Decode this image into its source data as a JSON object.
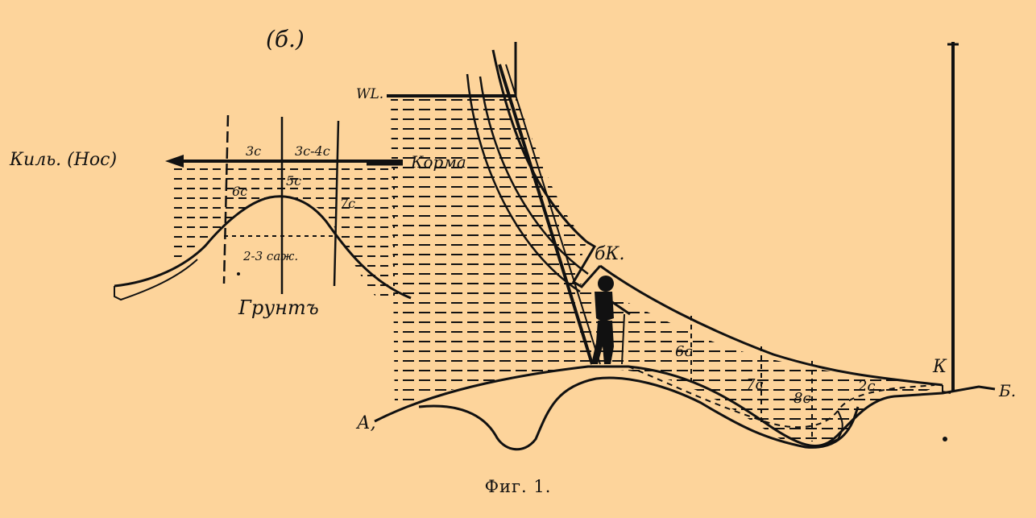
{
  "figure_label": "(б.)",
  "caption": "Фиг. 1.",
  "left_diagram": {
    "keel_label": "Киль. (Нос)",
    "stern_label": "Корма",
    "depth_top_left": "3с",
    "depth_top_right": "3с-4с",
    "depth_left": "6с",
    "depth_center": "5с",
    "depth_right": "7с",
    "width_label": "2-3 саж.",
    "ground_label": "Грунтъ"
  },
  "right_diagram": {
    "waterline_label": "WL.",
    "point_bk": "бК.",
    "point_k": "К",
    "point_a": "А,",
    "point_b": "Б.",
    "depth_6": "6с",
    "depth_7": "7с",
    "depth_8": "8с",
    "depth_2": "2с"
  },
  "colors": {
    "background": "#fdd49b",
    "ink": "#111111"
  }
}
